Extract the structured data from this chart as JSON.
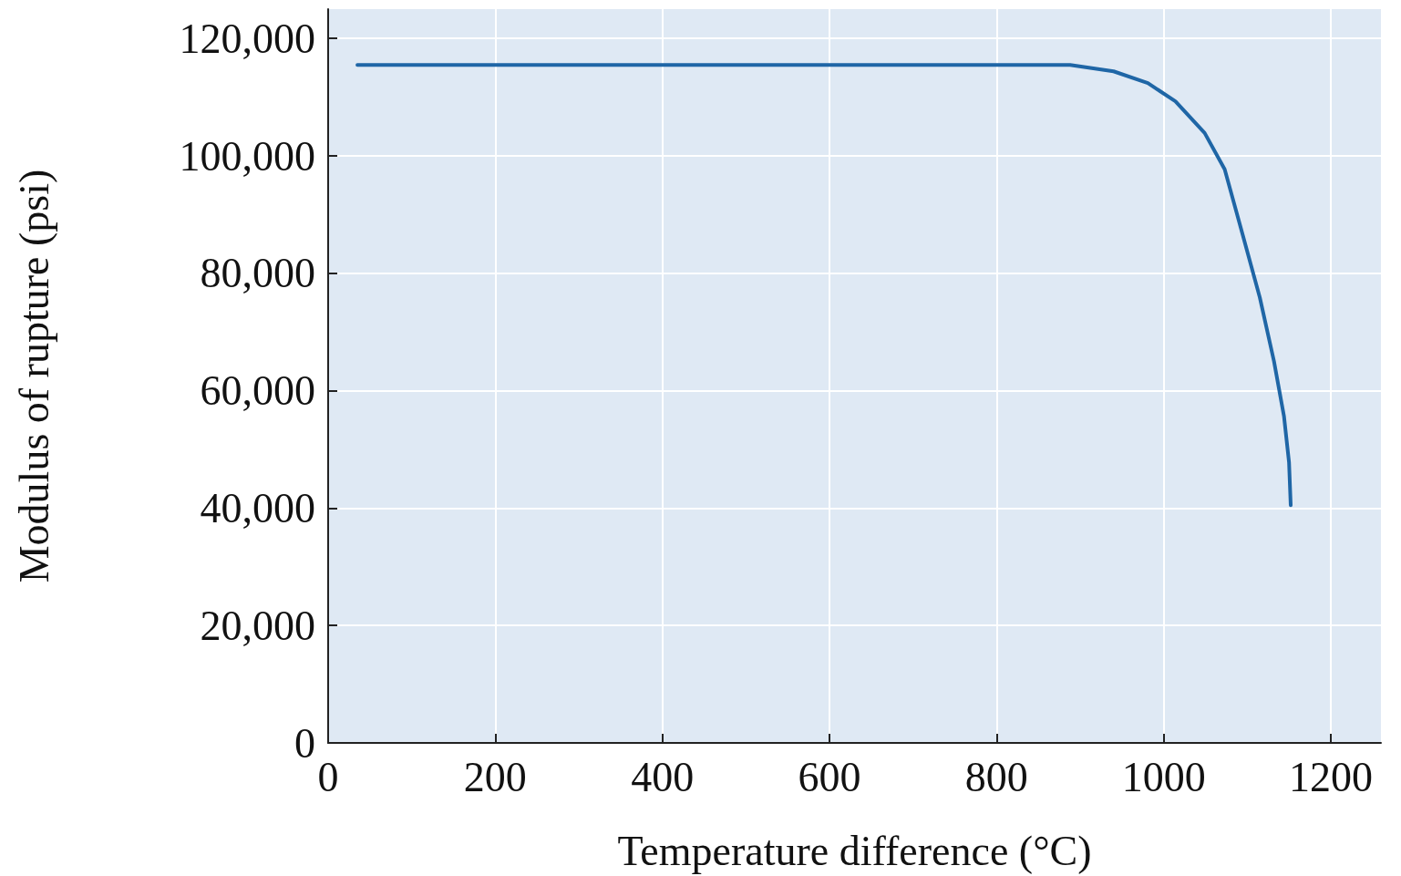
{
  "chart_data": {
    "type": "line",
    "xlabel": "Temperature difference (°C)",
    "ylabel": "Modulus of rupture (psi)",
    "x": [
      35,
      200,
      400,
      600,
      800,
      888,
      940,
      981,
      1014,
      1049,
      1073,
      1091,
      1115,
      1132,
      1144,
      1150,
      1152
    ],
    "series": [
      {
        "color": "#1f66a6",
        "values": [
          115500,
          115500,
          115500,
          115500,
          115500,
          115500,
          114400,
          112400,
          109300,
          103900,
          97700,
          88400,
          75900,
          65000,
          55600,
          47800,
          40500
        ]
      }
    ],
    "xlim": [
      0,
      1260
    ],
    "xticks": [
      0,
      200,
      400,
      600,
      800,
      1000,
      1200
    ],
    "ylim": [
      0,
      125000
    ],
    "yticks": [
      0,
      {
        "value": 20000,
        "label": "20,000"
      },
      {
        "value": 40000,
        "label": "40,000"
      },
      {
        "value": 60000,
        "label": "60,000"
      },
      {
        "value": 80000,
        "label": "80,000"
      },
      {
        "value": 100000,
        "label": "100,000"
      },
      {
        "value": 120000,
        "label": "120,000"
      }
    ],
    "grid": true,
    "marker": "none",
    "line_style": "solid"
  }
}
